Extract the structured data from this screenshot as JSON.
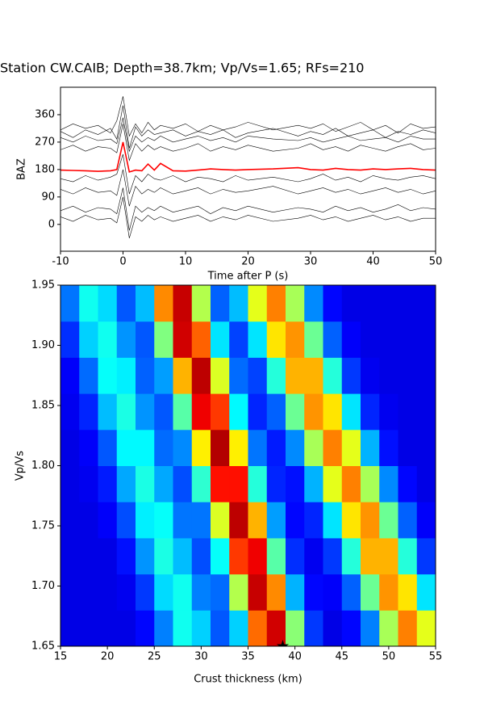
{
  "chart_data": [
    {
      "type": "line",
      "title": "Station CW.CAIB; Depth=38.7km; Vp/Vs=1.65; RFs=210",
      "x_label": "Time after P (s)",
      "y_label": "BAZ",
      "x": [
        -10,
        -8,
        -6,
        -4,
        -2,
        -1,
        0,
        1,
        2,
        3,
        4,
        5,
        6,
        8,
        10,
        12,
        14,
        16,
        18,
        20,
        24,
        28,
        30,
        32,
        34,
        36,
        38,
        40,
        42,
        44,
        46,
        48,
        50
      ],
      "xlim": [
        -10,
        50
      ],
      "xticks": [
        -10,
        0,
        10,
        20,
        30,
        40,
        50
      ],
      "ylim": [
        -88,
        450
      ],
      "yticks": [
        0,
        90,
        180,
        270,
        360
      ],
      "grid": false,
      "series": [
        {
          "color": "#000000",
          "values": [
            310,
            330,
            315,
            325,
            300,
            340,
            420,
            290,
            330,
            300,
            335,
            310,
            325,
            315,
            330,
            305,
            325,
            310,
            320,
            335,
            310,
            325,
            315,
            330,
            305,
            320,
            335,
            310,
            325,
            300,
            330,
            315,
            320
          ]
        },
        {
          "color": "#000000",
          "values": [
            305,
            285,
            310,
            295,
            315,
            280,
            390,
            250,
            320,
            290,
            310,
            295,
            300,
            310,
            290,
            305,
            295,
            310,
            285,
            300,
            315,
            290,
            305,
            295,
            315,
            290,
            300,
            310,
            285,
            305,
            295,
            310,
            300
          ]
        },
        {
          "color": "#000000",
          "values": [
            285,
            270,
            290,
            275,
            280,
            265,
            350,
            240,
            290,
            270,
            285,
            275,
            290,
            270,
            280,
            290,
            275,
            285,
            270,
            290,
            280,
            275,
            285,
            270,
            280,
            290,
            275,
            280,
            285,
            270,
            290,
            280,
            280
          ]
        },
        {
          "color": "#000000",
          "values": [
            245,
            260,
            240,
            255,
            250,
            235,
            330,
            210,
            265,
            240,
            260,
            245,
            255,
            240,
            250,
            265,
            240,
            255,
            245,
            260,
            240,
            250,
            265,
            245,
            255,
            240,
            260,
            250,
            240,
            255,
            265,
            245,
            250
          ]
        },
        {
          "color": "#000000",
          "values": [
            150,
            140,
            160,
            145,
            155,
            165,
            230,
            100,
            160,
            140,
            165,
            150,
            145,
            160,
            140,
            155,
            150,
            140,
            160,
            145,
            155,
            140,
            150,
            165,
            145,
            155,
            140,
            160,
            150,
            145,
            155,
            160,
            150
          ]
        },
        {
          "color": "#000000",
          "values": [
            115,
            100,
            120,
            105,
            110,
            95,
            180,
            60,
            125,
            100,
            115,
            105,
            120,
            100,
            110,
            120,
            100,
            115,
            105,
            110,
            125,
            100,
            110,
            120,
            105,
            115,
            100,
            110,
            120,
            105,
            115,
            100,
            110
          ]
        },
        {
          "color": "#000000",
          "values": [
            45,
            60,
            40,
            55,
            50,
            35,
            120,
            -20,
            60,
            40,
            55,
            45,
            60,
            40,
            50,
            60,
            35,
            55,
            45,
            60,
            40,
            55,
            50,
            40,
            60,
            45,
            55,
            40,
            50,
            65,
            45,
            55,
            50
          ]
        },
        {
          "color": "#000000",
          "values": [
            25,
            10,
            30,
            15,
            20,
            5,
            90,
            -45,
            25,
            10,
            30,
            15,
            25,
            10,
            20,
            30,
            10,
            25,
            15,
            30,
            10,
            20,
            30,
            15,
            25,
            10,
            20,
            30,
            15,
            25,
            10,
            20,
            20
          ]
        },
        {
          "color": "#ff0000",
          "values": [
            178,
            177,
            176,
            174,
            176,
            180,
            270,
            172,
            178,
            176,
            198,
            178,
            200,
            176,
            175,
            178,
            182,
            180,
            178,
            180,
            182,
            186,
            180,
            178,
            184,
            180,
            178,
            182,
            180,
            182,
            184,
            180,
            178
          ]
        }
      ]
    },
    {
      "type": "heatmap",
      "x_label": "Crust thickness (km)",
      "y_label": "Vp/Vs",
      "colormap": "jet",
      "x": [
        16,
        18,
        20,
        22,
        24,
        26,
        28,
        30,
        32,
        34,
        36,
        38,
        40,
        42,
        44,
        46,
        48,
        50,
        52,
        54
      ],
      "y": [
        1.665,
        1.695,
        1.725,
        1.755,
        1.785,
        1.815,
        1.845,
        1.875,
        1.905,
        1.935
      ],
      "z": [
        [
          0.1,
          0.1,
          0.1,
          0.1,
          0.13,
          0.25,
          0.39,
          0.33,
          0.21,
          0.33,
          0.77,
          0.92,
          0.51,
          0.18,
          0.1,
          0.13,
          0.25,
          0.54,
          0.75,
          0.6
        ],
        [
          0.1,
          0.1,
          0.1,
          0.11,
          0.18,
          0.34,
          0.39,
          0.25,
          0.23,
          0.55,
          0.93,
          0.74,
          0.3,
          0.13,
          0.12,
          0.22,
          0.48,
          0.73,
          0.65,
          0.35
        ],
        [
          0.1,
          0.1,
          0.1,
          0.14,
          0.27,
          0.4,
          0.31,
          0.2,
          0.38,
          0.82,
          0.89,
          0.46,
          0.17,
          0.11,
          0.18,
          0.41,
          0.7,
          0.7,
          0.41,
          0.18
        ],
        [
          0.1,
          0.1,
          0.12,
          0.2,
          0.36,
          0.38,
          0.24,
          0.24,
          0.59,
          0.94,
          0.7,
          0.28,
          0.13,
          0.16,
          0.35,
          0.65,
          0.73,
          0.48,
          0.22,
          0.12
        ],
        [
          0.1,
          0.11,
          0.15,
          0.29,
          0.4,
          0.29,
          0.2,
          0.42,
          0.86,
          0.86,
          0.41,
          0.16,
          0.14,
          0.3,
          0.6,
          0.75,
          0.54,
          0.26,
          0.13,
          0.1
        ],
        [
          0.1,
          0.12,
          0.21,
          0.37,
          0.37,
          0.23,
          0.26,
          0.64,
          0.95,
          0.64,
          0.24,
          0.15,
          0.26,
          0.54,
          0.75,
          0.6,
          0.3,
          0.14,
          0.1,
          0.1
        ],
        [
          0.11,
          0.16,
          0.31,
          0.4,
          0.27,
          0.21,
          0.46,
          0.89,
          0.82,
          0.37,
          0.16,
          0.22,
          0.48,
          0.73,
          0.65,
          0.35,
          0.16,
          0.11,
          0.1,
          0.1
        ],
        [
          0.12,
          0.23,
          0.38,
          0.36,
          0.22,
          0.28,
          0.7,
          0.94,
          0.59,
          0.23,
          0.19,
          0.41,
          0.7,
          0.7,
          0.41,
          0.18,
          0.11,
          0.1,
          0.1,
          0.1
        ],
        [
          0.17,
          0.33,
          0.39,
          0.27,
          0.21,
          0.5,
          0.92,
          0.78,
          0.35,
          0.19,
          0.35,
          0.65,
          0.73,
          0.48,
          0.22,
          0.12,
          0.1,
          0.1,
          0.1,
          0.1
        ],
        [
          0.24,
          0.39,
          0.34,
          0.21,
          0.31,
          0.74,
          0.93,
          0.55,
          0.22,
          0.31,
          0.6,
          0.75,
          0.54,
          0.26,
          0.13,
          0.1,
          0.1,
          0.1,
          0.1,
          0.1
        ]
      ],
      "best": {
        "x": 38.7,
        "y": 1.65
      },
      "xlim": [
        15,
        55
      ],
      "xticks": [
        15,
        20,
        25,
        30,
        35,
        40,
        45,
        50,
        55
      ],
      "ylim": [
        1.65,
        1.95
      ],
      "yticks": [
        1.65,
        {
          "value": 1.7,
          "label": "1.70"
        },
        1.75,
        {
          "value": 1.8,
          "label": "1.80"
        },
        1.85,
        {
          "value": 1.9,
          "label": "1.90"
        },
        1.95
      ]
    }
  ]
}
